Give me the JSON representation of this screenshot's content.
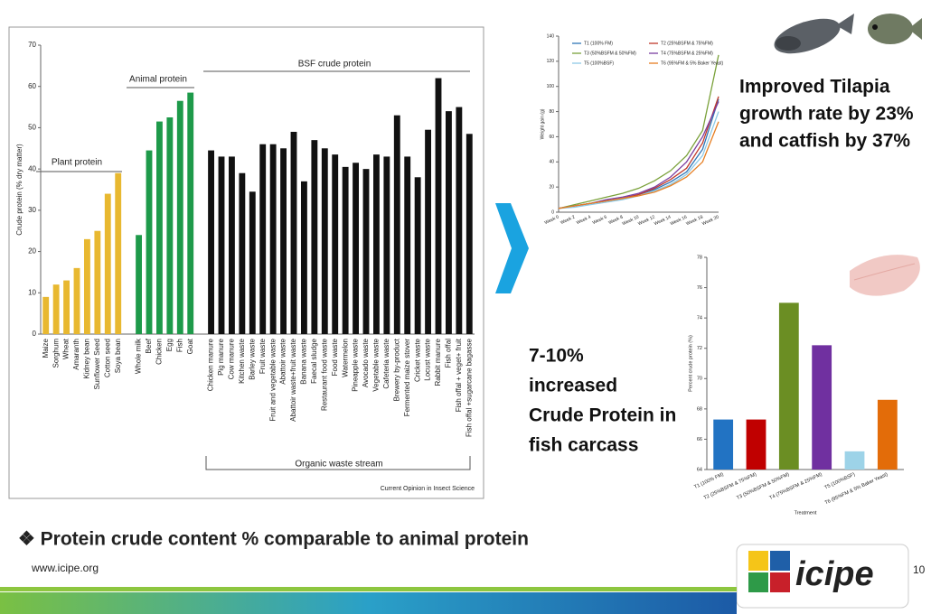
{
  "slide": {
    "growth_lines": [
      "Improved Tilapia",
      "growth rate by 23%",
      "and catfish by 37%"
    ],
    "protein_lines": [
      "7-10%",
      "increased",
      "Crude Protein in",
      "fish carcass"
    ],
    "bullet": "❖ Protein crude content % comparable to animal protein",
    "url": "www.icipe.org",
    "logo_text": "icipe",
    "page_number": "10"
  },
  "chart_data": [
    {
      "type": "bar",
      "y_label": "Crude protein (% dry matter)",
      "group_labels": [
        "Plant protein",
        "Animal protein",
        "BSF crude protein",
        "Organic waste stream"
      ],
      "source": "Current Opinion in Insect Science",
      "categories": [
        "Maize",
        "Sorghum",
        "Wheat",
        "Amaranth",
        "Kidney bean",
        "Sunflower Seed",
        "Cotton seed",
        "Soya bean",
        null,
        "Whole milk",
        "Beef",
        "Chicken",
        "Egg",
        "Fish",
        "Goat",
        null,
        "Chicken manure",
        "Pig manure",
        "Cow manure",
        "Kitchen waste",
        "Barley waste",
        "Fruit waste",
        "Fruit and vegetable waste",
        "Abattoir waste",
        "Abattoir waste+fruit waste",
        "Banana waste",
        "Faecal sludge",
        "Restaurant food waste",
        "Food waste",
        "Watermelon",
        "Pineapple waste",
        "Avocado waste",
        "Vegetable waste",
        "Cafeteria waste",
        "Brewery by-product",
        "Fermented maize stover",
        "Cricket waste",
        "Locust waste",
        "Rabbit manure",
        "Fish offal",
        "Fish offal + veget+ fruit",
        "Fish offal +sugarcane bagasse"
      ],
      "values": [
        9,
        12,
        13,
        16,
        23,
        25,
        34,
        39,
        null,
        24,
        44.5,
        51.5,
        52.5,
        56.5,
        58.5,
        null,
        44.5,
        43,
        43,
        39,
        34.5,
        46,
        46,
        45,
        49,
        37,
        47,
        45,
        43.5,
        40.5,
        41.5,
        40,
        43.5,
        43,
        53,
        43,
        38,
        49.5,
        62,
        54,
        55,
        48.5
      ],
      "colors": [
        "#e8b830",
        "#e8b830",
        "#e8b830",
        "#e8b830",
        "#e8b830",
        "#e8b830",
        "#e8b830",
        "#e8b830",
        null,
        "#1e9a4a",
        "#1e9a4a",
        "#1e9a4a",
        "#1e9a4a",
        "#1e9a4a",
        "#1e9a4a",
        null,
        "#111111",
        "#111111",
        "#111111",
        "#111111",
        "#111111",
        "#111111",
        "#111111",
        "#111111",
        "#111111",
        "#111111",
        "#111111",
        "#111111",
        "#111111",
        "#111111",
        "#111111",
        "#111111",
        "#111111",
        "#111111",
        "#111111",
        "#111111",
        "#111111",
        "#111111",
        "#111111",
        "#111111",
        "#111111",
        "#111111"
      ],
      "ylim": [
        0,
        70
      ],
      "yticks": [
        0,
        10,
        20,
        30,
        40,
        50,
        60,
        70
      ]
    },
    {
      "type": "line",
      "y_label": "Weight gain (g)",
      "categories": [
        "Week 0",
        "Week 2",
        "Week 4",
        "Week 6",
        "Week 8",
        "Week 10",
        "Week 12",
        "Week 14",
        "Week 16",
        "Week 18",
        "Week 20"
      ],
      "series": [
        {
          "name": "T1 (100% FM)",
          "color": "#2e75b6",
          "values": [
            3,
            5,
            7,
            9,
            11,
            14,
            18,
            24,
            32,
            50,
            90
          ]
        },
        {
          "name": "T2 (25%BSFM & 75%FM)",
          "color": "#c0392b",
          "values": [
            3,
            5,
            7,
            9,
            11,
            14,
            19,
            26,
            35,
            55,
            92
          ]
        },
        {
          "name": "T3 (50%BSFM & 50%FM)",
          "color": "#7aa13a",
          "values": [
            3,
            6,
            9,
            12,
            15,
            19,
            25,
            33,
            45,
            65,
            125
          ]
        },
        {
          "name": "T4 (75%BSFM & 25%FM)",
          "color": "#7b3fa0",
          "values": [
            3,
            5,
            7,
            10,
            12,
            15,
            20,
            28,
            40,
            60,
            88
          ]
        },
        {
          "name": "T5 (100%BSF)",
          "color": "#8ecae6",
          "values": [
            3,
            4,
            6,
            8,
            10,
            13,
            17,
            22,
            30,
            45,
            80
          ]
        },
        {
          "name": "T6 (95%FM & 5% Baker Yeast)",
          "color": "#e67e22",
          "values": [
            3,
            5,
            7,
            9,
            11,
            13,
            16,
            21,
            28,
            40,
            72
          ]
        }
      ],
      "ylim": [
        0,
        140
      ],
      "yticks": [
        0,
        20,
        40,
        60,
        80,
        100,
        120,
        140
      ]
    },
    {
      "type": "bar",
      "y_label": "Percent crude protein (%)",
      "x_label": "Treatment",
      "categories": [
        "T1 (100% FM)",
        "T2 (25%BSFM & 75%FM)",
        "T3 (50%BSFM & 50%FM)",
        "T4 (75%BSFM & 25%FM)",
        "T5 (100%BSF)",
        "T6 (95%FM & 5% Baker Yeast)"
      ],
      "values": [
        67.3,
        67.3,
        75,
        72.2,
        65.2,
        68.6
      ],
      "colors": [
        "#2273c3",
        "#c00000",
        "#6b8e23",
        "#7030a0",
        "#9dd3e8",
        "#e36c09"
      ],
      "ylim": [
        64,
        78
      ],
      "yticks": [
        64,
        66,
        68,
        70,
        72,
        74,
        76,
        78
      ]
    }
  ]
}
